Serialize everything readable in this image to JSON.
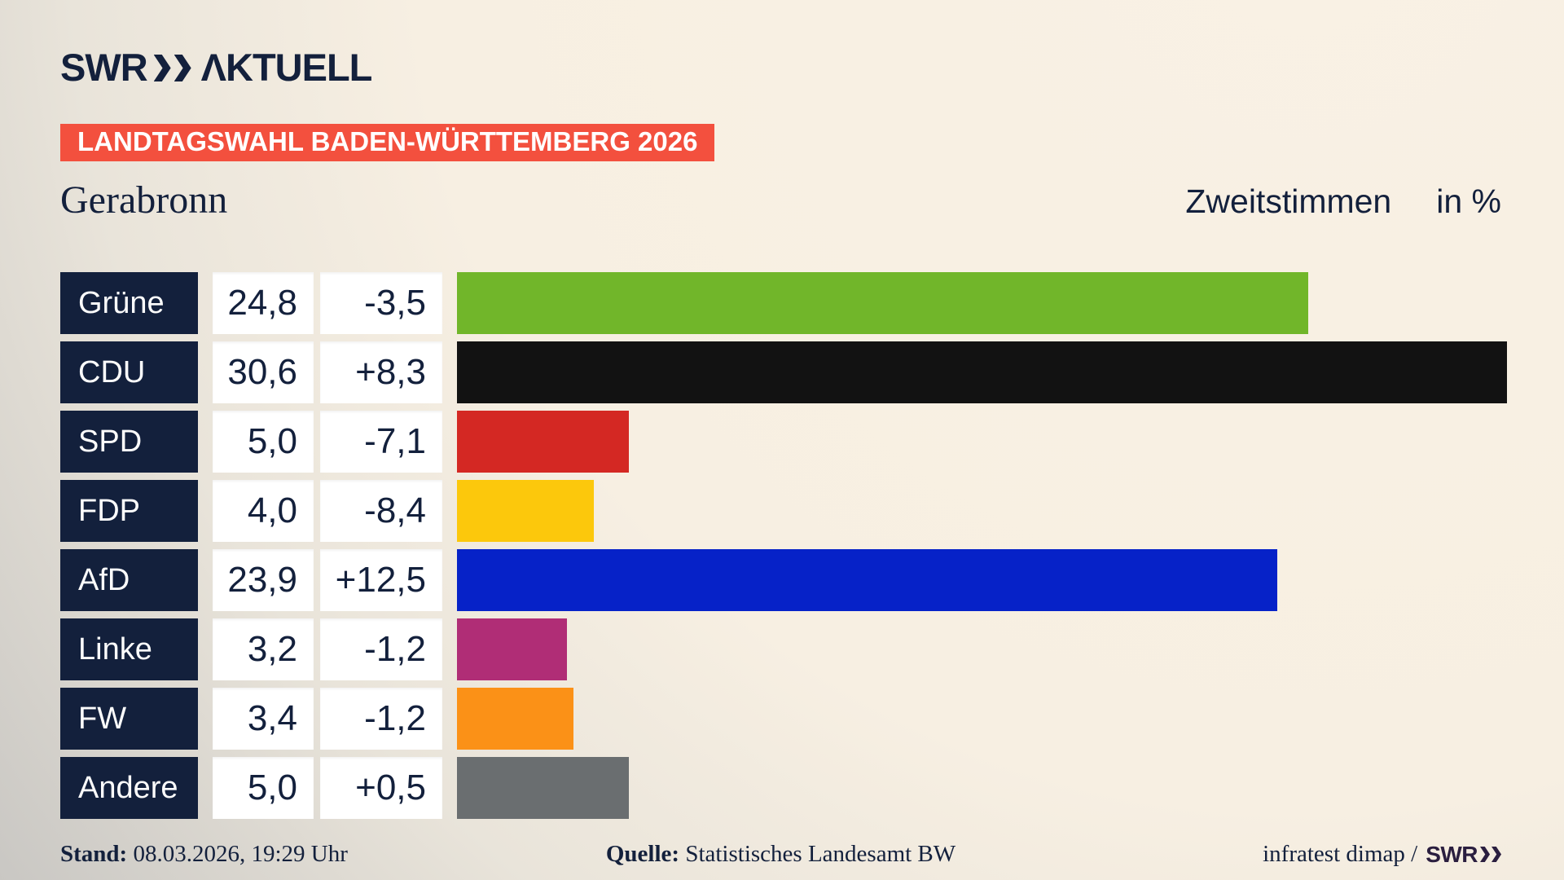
{
  "header": {
    "logo_brand": "SWR",
    "logo_product": "ΛKTUELL",
    "badge": "LANDTAGSWAHL BADEN-WÜRTTEMBERG 2026"
  },
  "title": {
    "location": "Gerabronn",
    "measure": "Zweitstimmen",
    "unit": "in %"
  },
  "chart_data": {
    "type": "bar",
    "orientation": "horizontal",
    "title": "Zweitstimmen in %",
    "value_unit": "%",
    "max_value": 30.6,
    "categories": [
      "Grüne",
      "CDU",
      "SPD",
      "FDP",
      "AfD",
      "Linke",
      "FW",
      "Andere"
    ],
    "series": [
      {
        "party": "Grüne",
        "value": 24.8,
        "value_label": "24,8",
        "change_label": "-3,5",
        "color": "#71b62a"
      },
      {
        "party": "CDU",
        "value": 30.6,
        "value_label": "30,6",
        "change_label": "+8,3",
        "color": "#121212"
      },
      {
        "party": "SPD",
        "value": 5.0,
        "value_label": "5,0",
        "change_label": "-7,1",
        "color": "#d42823"
      },
      {
        "party": "FDP",
        "value": 4.0,
        "value_label": "4,0",
        "change_label": "-8,4",
        "color": "#fcc80c"
      },
      {
        "party": "AfD",
        "value": 23.9,
        "value_label": "23,9",
        "change_label": "+12,5",
        "color": "#0622c8"
      },
      {
        "party": "Linke",
        "value": 3.2,
        "value_label": "3,2",
        "change_label": "-1,2",
        "color": "#b02d76"
      },
      {
        "party": "FW",
        "value": 3.4,
        "value_label": "3,4",
        "change_label": "-1,2",
        "color": "#fb9117"
      },
      {
        "party": "Andere",
        "value": 5.0,
        "value_label": "5,0",
        "change_label": "+0,5",
        "color": "#6a6e70"
      }
    ]
  },
  "footer": {
    "stand_label": "Stand:",
    "stand_value": "08.03.2026, 19:29 Uhr",
    "source_label": "Quelle:",
    "source_value": "Statistisches Landesamt BW",
    "credit_text": "infratest dimap /",
    "credit_brand": "SWR"
  },
  "colors": {
    "navy": "#13203c",
    "badge_red": "#f3503e",
    "background_cream": "#f8f0e3",
    "background_gray": "#c9c7c3",
    "box_white": "#ffffff"
  }
}
